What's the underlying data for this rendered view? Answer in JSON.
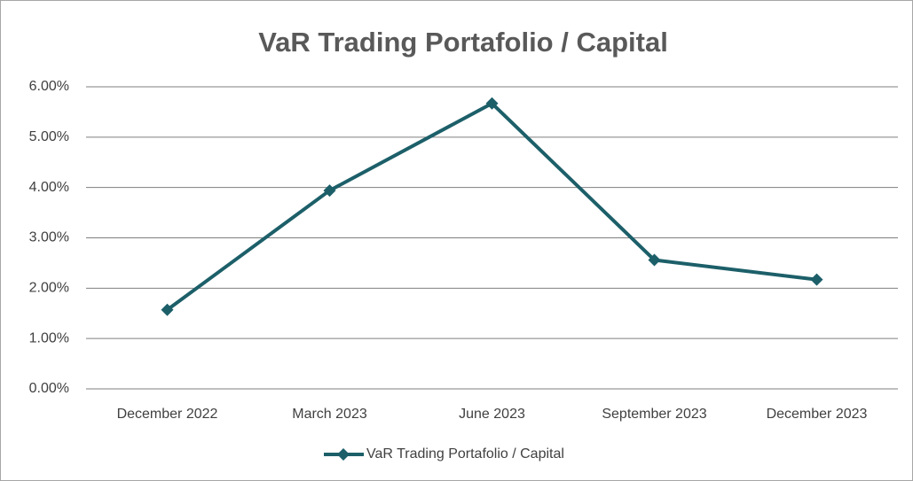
{
  "chart_data": {
    "type": "line",
    "title": "VaR Trading Portafolio / Capital",
    "categories": [
      "December 2022",
      "March 2023",
      "June 2023",
      "September 2023",
      "December 2023"
    ],
    "series": [
      {
        "name": "VaR Trading Portafolio / Capital",
        "color": "#1c5f69",
        "values": [
          1.57,
          3.94,
          5.67,
          2.56,
          2.17
        ]
      }
    ],
    "ylim": [
      0,
      6
    ],
    "yticks": [
      {
        "value": 0,
        "label": "0.00%"
      },
      {
        "value": 1,
        "label": "1.00%"
      },
      {
        "value": 2,
        "label": "2.00%"
      },
      {
        "value": 3,
        "label": "3.00%"
      },
      {
        "value": 4,
        "label": "4.00%"
      },
      {
        "value": 5,
        "label": "5.00%"
      },
      {
        "value": 6,
        "label": "6.00%"
      }
    ],
    "grid": true,
    "legend": "bottom"
  }
}
